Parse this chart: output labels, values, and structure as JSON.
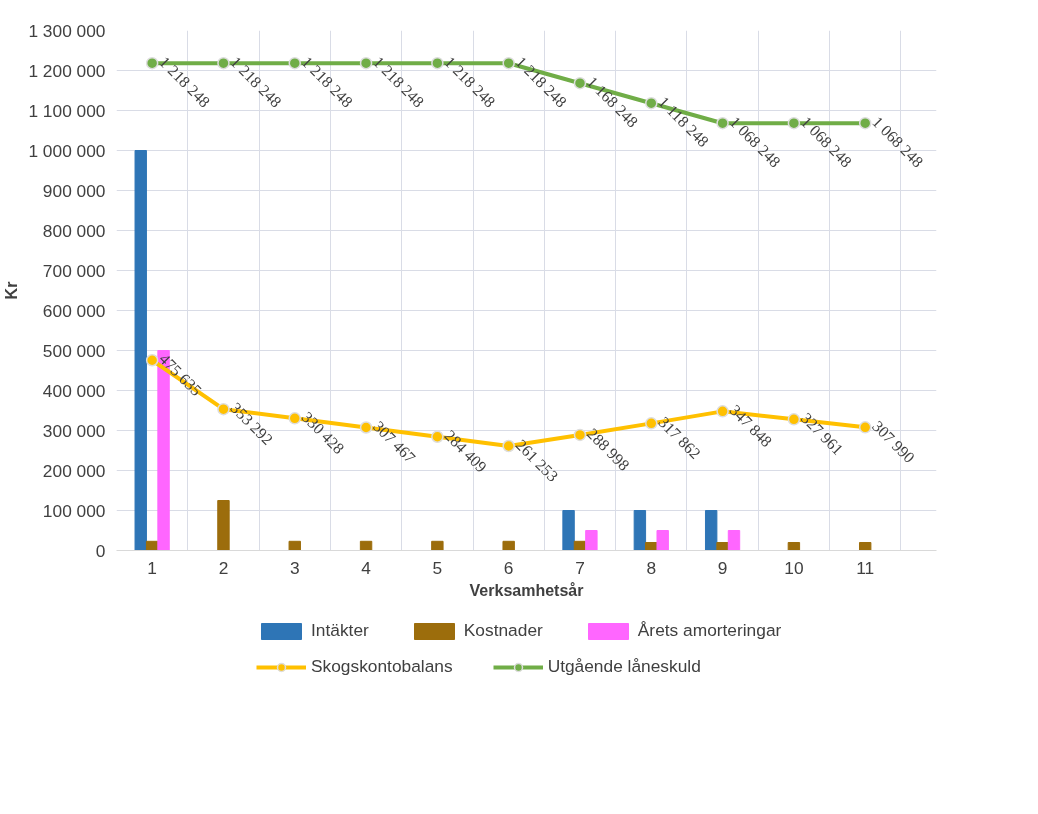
{
  "chart_data": {
    "type": "bar",
    "xlabel": "Verksamhetsår",
    "ylabel": "Kr",
    "categories": [
      "1",
      "2",
      "3",
      "4",
      "5",
      "6",
      "7",
      "8",
      "9",
      "10",
      "11"
    ],
    "series": [
      {
        "name": "Intäkter",
        "color": "#2e75b6",
        "values": [
          1000000,
          0,
          0,
          0,
          0,
          0,
          100000,
          100000,
          100000,
          0,
          0
        ]
      },
      {
        "name": "Kostnader",
        "color": "#9c6d0c",
        "values": [
          23000,
          125000,
          23000,
          23000,
          23000,
          23000,
          23000,
          20000,
          20000,
          20000,
          20000
        ]
      },
      {
        "name": "Årets amorteringar",
        "color": "#ff66ff",
        "values": [
          500000,
          0,
          0,
          0,
          0,
          0,
          50000,
          50000,
          50000,
          0,
          0
        ]
      },
      {
        "name": "Skogskontobalans",
        "type": "line",
        "marker": "circle",
        "color": "#ffc000",
        "values": [
          475635,
          353292,
          330428,
          307467,
          284409,
          261253,
          288998,
          317862,
          347848,
          327961,
          307990
        ],
        "value_labels": [
          "475 635",
          "353 292",
          "330 428",
          "307 467",
          "284 409",
          "261 253",
          "288 998",
          "317 862",
          "347 848",
          "327 961",
          "307 990"
        ]
      },
      {
        "name": "Utgående låneskuld",
        "type": "line",
        "marker": "circle",
        "color": "#70ad47",
        "values": [
          1218248,
          1218248,
          1218248,
          1218248,
          1218248,
          1218248,
          1168248,
          1118248,
          1068248,
          1068248,
          1068248
        ],
        "value_labels": [
          "1 218 248",
          "1 218 248",
          "1 218 248",
          "1 218 248",
          "1 218 248",
          "1 218 248",
          "1 168 248",
          "1 118 248",
          "1 068 248",
          "1 068 248",
          "1 068 248"
        ]
      }
    ],
    "ylim": [
      0,
      1300000
    ],
    "yticks": [
      0,
      {
        "value": 100000,
        "label": "100 000"
      },
      {
        "value": 200000,
        "label": "200 000"
      },
      {
        "value": 300000,
        "label": "300 000"
      },
      {
        "value": 400000,
        "label": "400 000"
      },
      {
        "value": 500000,
        "label": "500 000"
      },
      {
        "value": 600000,
        "label": "600 000"
      },
      {
        "value": 700000,
        "label": "700 000"
      },
      {
        "value": 800000,
        "label": "800 000"
      },
      {
        "value": 900000,
        "label": "900 000"
      },
      {
        "value": 1000000,
        "label": "1 000 000"
      },
      {
        "value": 1100000,
        "label": "1 100 000"
      },
      {
        "value": 1200000,
        "label": "1 200 000"
      },
      {
        "value": 1300000,
        "label": "1 300 000"
      }
    ],
    "grid": true,
    "legend": "bottom",
    "line_style": "solid"
  }
}
